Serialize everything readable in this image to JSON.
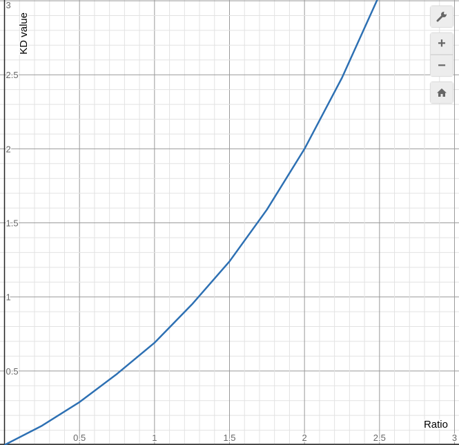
{
  "chart_data": {
    "type": "line",
    "title": "",
    "xlabel": "Ratio",
    "ylabel": "KD value",
    "xlim": [
      -0.03,
      3.03
    ],
    "ylim": [
      0,
      3.005
    ],
    "grid": true,
    "x_ticks": [
      "0.5",
      "1",
      "1.5",
      "2",
      "2.5",
      "3"
    ],
    "y_ticks": [
      "0.5",
      "1",
      "1.5",
      "2",
      "2.5",
      "3"
    ],
    "series": [
      {
        "color": "#2d70b3",
        "x": [
          0,
          0.25,
          0.5,
          0.75,
          1.0,
          1.25,
          1.5,
          1.75,
          2.0,
          2.25,
          2.5,
          2.6
        ],
        "y": [
          0,
          0.13,
          0.29,
          0.48,
          0.69,
          0.95,
          1.24,
          1.59,
          2.0,
          2.48,
          3.04,
          3.28
        ]
      }
    ]
  },
  "controls": [
    {
      "icon": "wrench-icon",
      "name": "settings-button"
    },
    {
      "icon": "plus-icon",
      "name": "zoom-in-button"
    },
    {
      "icon": "minus-icon",
      "name": "zoom-out-button"
    },
    {
      "icon": "home-icon",
      "name": "home-button"
    }
  ]
}
